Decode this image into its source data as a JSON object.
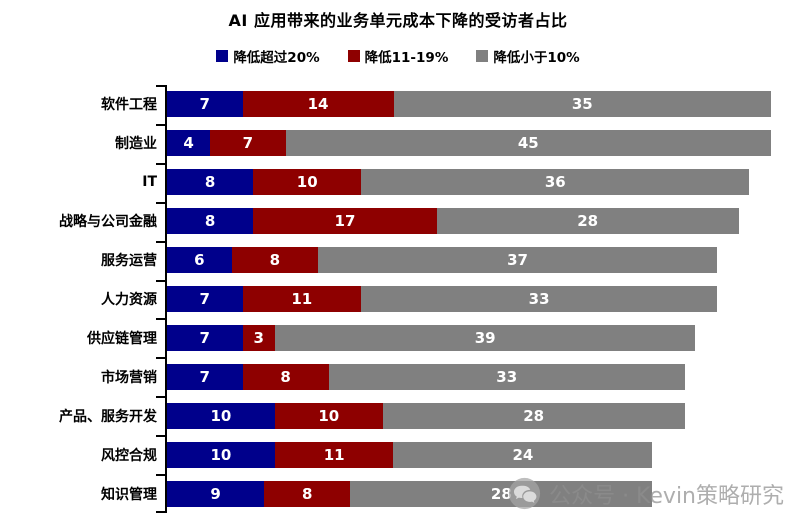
{
  "title": "AI 应用带来的业务单元成本下降的受访者占比",
  "legend": {
    "items": [
      {
        "label": "降低超过20%",
        "color": "#00008B"
      },
      {
        "label": "降低11-19%",
        "color": "#8E0000"
      },
      {
        "label": "降低小于10%",
        "color": "#808080"
      }
    ]
  },
  "watermark": {
    "icon": "wechat-icon",
    "text": "公众号 · Kevin策略研究"
  },
  "chart_data": {
    "type": "bar",
    "orientation": "horizontal",
    "stacked": true,
    "title": "AI 应用带来的业务单元成本下降的受访者占比",
    "categories": [
      "软件工程",
      "制造业",
      "IT",
      "战略与公司金融",
      "服务运营",
      "人力资源",
      "供应链管理",
      "市场营销",
      "产品、服务开发",
      "风控合规",
      "知识管理"
    ],
    "series": [
      {
        "name": "降低超过20%",
        "color": "#00008B",
        "values": [
          7,
          4,
          8,
          8,
          6,
          7,
          7,
          7,
          10,
          10,
          9
        ]
      },
      {
        "name": "降低11-19%",
        "color": "#8E0000",
        "values": [
          14,
          7,
          10,
          17,
          8,
          11,
          3,
          8,
          10,
          11,
          8
        ]
      },
      {
        "name": "降低小于10%",
        "color": "#808080",
        "values": [
          35,
          45,
          36,
          28,
          37,
          33,
          39,
          33,
          28,
          24,
          28
        ]
      }
    ],
    "totals": [
      56,
      56,
      54,
      53,
      51,
      51,
      49,
      48,
      48,
      45,
      45
    ],
    "xlim": [
      0,
      56
    ],
    "data_labels": true,
    "data_label_color": "#ffffff",
    "legend_position": "top",
    "grid": false
  }
}
